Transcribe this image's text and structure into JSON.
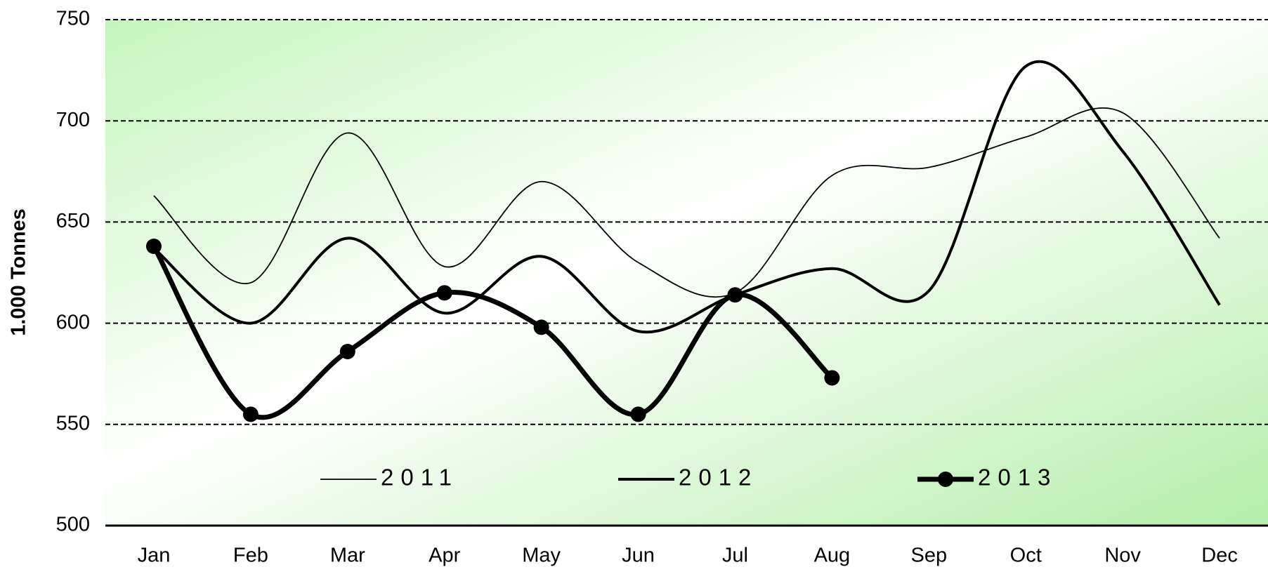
{
  "chart_data": {
    "type": "line",
    "y_label": "1.000 Tonnes",
    "categories": [
      "Jan",
      "Feb",
      "Mar",
      "Apr",
      "May",
      "Jun",
      "Jul",
      "Aug",
      "Sep",
      "Oct",
      "Nov",
      "Dec"
    ],
    "series": [
      {
        "name": "2011",
        "color": "#000000",
        "values": [
          663,
          620,
          694,
          628,
          670,
          630,
          615,
          673,
          677,
          692,
          704,
          642
        ]
      },
      {
        "name": "2012",
        "color": "#000000",
        "values": [
          637,
          600,
          642,
          605,
          633,
          596,
          614,
          627,
          616,
          727,
          685,
          609
        ]
      },
      {
        "name": "2013",
        "color": "#000000",
        "values": [
          638,
          555,
          586,
          615,
          598,
          555,
          614,
          573,
          null,
          null,
          null,
          null
        ]
      }
    ],
    "ylim": [
      500,
      750
    ],
    "yticks": [
      500,
      550,
      600,
      650,
      700,
      750
    ],
    "grid": true,
    "legend": "bottom"
  }
}
